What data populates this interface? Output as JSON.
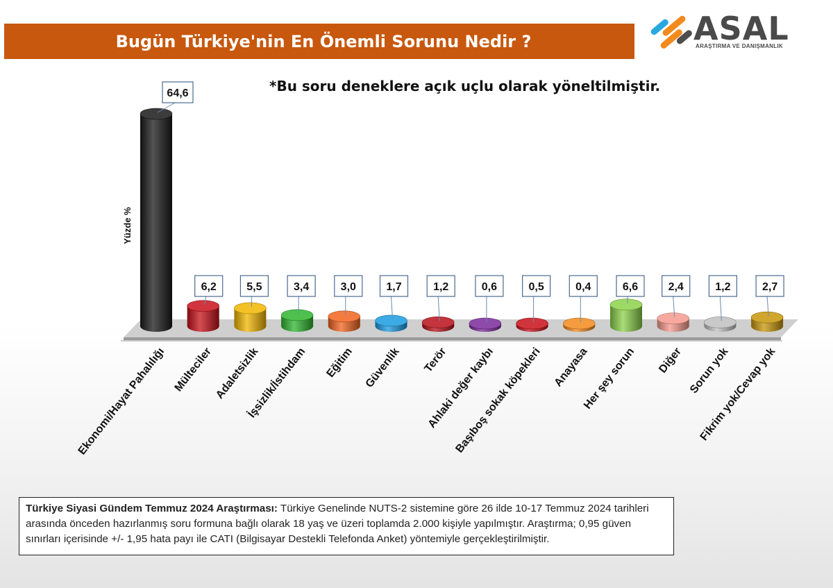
{
  "header": {
    "title": "Bugün Türkiye'nin En Önemli Sorunu Nedir ?",
    "note": "*Bu soru deneklere açık uçlu olarak yöneltilmiştir."
  },
  "logo": {
    "name": "ASAL",
    "tagline": "ARAŞTIRMA VE DANIŞMANLIK",
    "colors": [
      "#f28a1d",
      "#29a8e0",
      "#4d4d4d"
    ]
  },
  "chart_data": {
    "type": "bar",
    "ylabel": "Yüzde %",
    "categories": [
      "Ekonomi/Hayat Pahalılığı",
      "Mülteciler",
      "Adaletsizlik",
      "İşsizlik/İstihdam",
      "Eğitim",
      "Güvenlik",
      "Terör",
      "Ahlaki değer kaybı",
      "Başıboş sokak köpekleri",
      "Anayasa",
      "Her şey sorun",
      "Diğer",
      "Sorun yok",
      "Fikrim yok/Cevap yok"
    ],
    "values": [
      64.6,
      6.2,
      5.5,
      3.4,
      3.0,
      1.7,
      1.2,
      0.6,
      0.5,
      0.4,
      6.6,
      2.4,
      1.2,
      2.7
    ],
    "value_labels": [
      "64,6",
      "6,2",
      "5,5",
      "3,4",
      "3,0",
      "1,7",
      "1,2",
      "0,6",
      "0,5",
      "0,4",
      "6,6",
      "2,4",
      "1,2",
      "2,7"
    ],
    "colors": [
      "#1a1a1a",
      "#c8101a",
      "#f2b600",
      "#2fb52f",
      "#f2641e",
      "#1a9be0",
      "#b8101a",
      "#7a2a9a",
      "#c8101a",
      "#f28a1d",
      "#8cd24a",
      "#f59a8e",
      "#c0c0c0",
      "#c8960a"
    ],
    "grid": false,
    "legend": "none"
  },
  "footer": {
    "bold": "Türkiye Siyasi Gündem Temmuz 2024 Araştırması:",
    "text": " Türkiye Genelinde NUTS-2 sistemine göre 26 ilde 10-17 Temmuz 2024 tarihleri arasında önceden hazırlanmış soru formuna bağlı olarak 18 yaş ve üzeri toplamda 2.000 kişiyle yapılmıştır. Araştırma; 0,95 güven sınırları içerisinde +/- 1,95 hata payı ile CATI (Bilgisayar Destekli Telefonda Anket) yöntemiyle gerçekleştirilmiştir."
  }
}
